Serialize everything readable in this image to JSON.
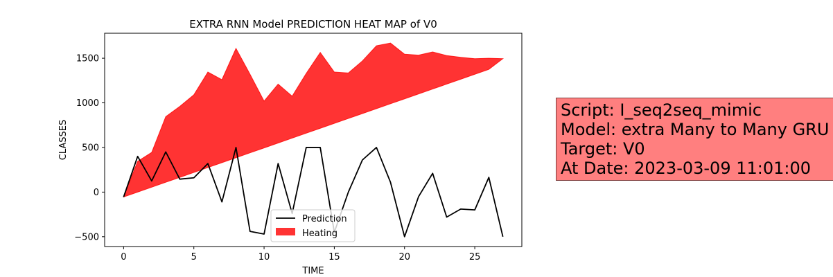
{
  "chart_data": {
    "type": "line",
    "title": "EXTRA RNN Model PREDICTION HEAT MAP of V0",
    "xlabel": "TIME",
    "ylabel": "CLASSES",
    "xlim": [
      -1.35,
      28.35
    ],
    "ylim": [
      -610,
      1780
    ],
    "xticks": [
      0,
      5,
      10,
      15,
      20,
      25
    ],
    "yticks": [
      -500,
      0,
      500,
      1000,
      1500
    ],
    "legend_position": "lower-center",
    "series": [
      {
        "name": "Prediction",
        "color": "#000000",
        "x": [
          0,
          1,
          2,
          3,
          4,
          5,
          6,
          7,
          8,
          9,
          10,
          11,
          12,
          13,
          14,
          15,
          16,
          17,
          18,
          19,
          20,
          21,
          22,
          23,
          24,
          25,
          26,
          27
        ],
        "values": [
          -55,
          400,
          125,
          450,
          145,
          160,
          320,
          -110,
          500,
          -440,
          -470,
          320,
          -240,
          500,
          500,
          -450,
          0,
          360,
          500,
          110,
          -500,
          -50,
          210,
          -280,
          -190,
          -200,
          165,
          -500
        ]
      },
      {
        "name": "Heating",
        "type": "area",
        "color": "#ff0000",
        "x": [
          0,
          1,
          2,
          3,
          4,
          5,
          6,
          7,
          8,
          9,
          10,
          11,
          12,
          13,
          14,
          15,
          16,
          17,
          18,
          19,
          20,
          21,
          22,
          23,
          24,
          25,
          26,
          27
        ],
        "lower": [
          -55,
          0,
          55,
          110,
          165,
          220,
          275,
          330,
          385,
          440,
          495,
          550,
          605,
          660,
          715,
          770,
          825,
          880,
          935,
          990,
          1045,
          1100,
          1155,
          1210,
          1265,
          1320,
          1375,
          1495
        ],
        "upper": [
          -55,
          345,
          445,
          845,
          960,
          1090,
          1345,
          1260,
          1610,
          1320,
          1020,
          1210,
          1075,
          1330,
          1565,
          1345,
          1335,
          1470,
          1640,
          1670,
          1545,
          1535,
          1570,
          1530,
          1510,
          1495,
          1500,
          1495
        ]
      }
    ]
  },
  "info": {
    "script": "Script: I_seq2seq_mimic",
    "model": "Model: extra Many to Many GRU",
    "target": "Target: V0",
    "date": "At Date: 2023-03-09 11:01:00"
  }
}
